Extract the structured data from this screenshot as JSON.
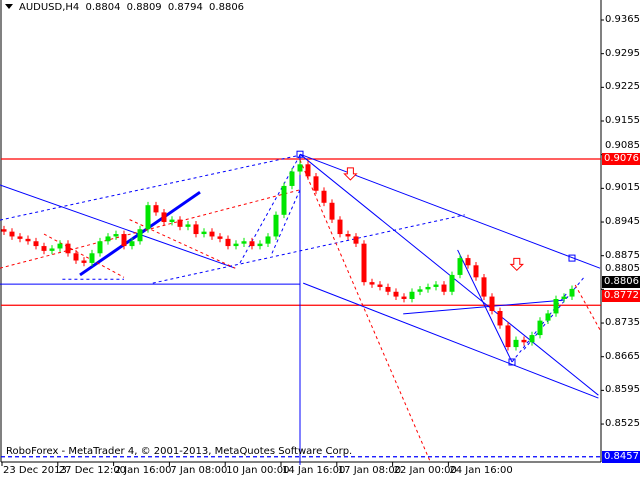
{
  "header": {
    "symbol": "AUDUSD,H4",
    "open": "0.8804",
    "high": "0.8809",
    "low": "0.8794",
    "close": "0.8806"
  },
  "copyright": "RoboForex - MetaTrader 4, © 2001-2013, MetaQuotes Software Corp.",
  "colors": {
    "bull": "#00e600",
    "bear": "#ff0000",
    "lines": "#0000ff",
    "levels": "#ff0000",
    "current_price_bg": "#000000",
    "level_tag_bg": "#ff0000",
    "low_tag_bg": "#0000ff"
  },
  "chart_data": {
    "type": "candlestick",
    "ylim": [
      0.8435,
      0.94
    ],
    "y_ticks": [
      "0.9365",
      "0.9295",
      "0.9225",
      "0.9155",
      "0.9085",
      "0.9015",
      "0.8945",
      "0.8875",
      "0.8805",
      "0.8735",
      "0.8665",
      "0.8595",
      "0.8525"
    ],
    "x_ticks": [
      "23 Dec 2013",
      "27 Dec 12:00",
      "2 Jan 16:00",
      "7 Jan 08:00",
      "10 Jan 00:00",
      "14 Jan 16:00",
      "17 Jan 08:00",
      "22 Jan 00:00",
      "24 Jan 16:00"
    ],
    "close": [
      0.8925,
      0.8915,
      0.891,
      0.8905,
      0.8895,
      0.8885,
      0.889,
      0.89,
      0.888,
      0.8865,
      0.886,
      0.888,
      0.8905,
      0.8915,
      0.892,
      0.8895,
      0.8905,
      0.893,
      0.898,
      0.8965,
      0.8945,
      0.895,
      0.8935,
      0.894,
      0.892,
      0.8925,
      0.8915,
      0.891,
      0.8895,
      0.89,
      0.8905,
      0.8895,
      0.89,
      0.8915,
      0.896,
      0.902,
      0.905,
      0.9065,
      0.904,
      0.901,
      0.8985,
      0.895,
      0.892,
      0.8915,
      0.89,
      0.882,
      0.8815,
      0.881,
      0.88,
      0.879,
      0.8785,
      0.88,
      0.8805,
      0.881,
      0.8815,
      0.88,
      0.8835,
      0.887,
      0.8855,
      0.883,
      0.879,
      0.876,
      0.873,
      0.8685,
      0.87,
      0.8695,
      0.871,
      0.874,
      0.8755,
      0.8785,
      0.879,
      0.8806
    ],
    "price_labels": {
      "current": "0.8806",
      "resistance": "0.9076",
      "support": "0.8772",
      "target": "0.8457"
    },
    "levels": [
      {
        "price": 0.9076,
        "style": "solid",
        "color": "red"
      },
      {
        "price": 0.8772,
        "style": "solid",
        "color": "red"
      },
      {
        "price": 0.8457,
        "style": "dashed",
        "color": "blue"
      }
    ],
    "trendlines": [
      {
        "from": [
          -0.5,
          0.9022
        ],
        "to": [
          28.9,
          0.8849
        ],
        "style": "solid",
        "color": "blue"
      },
      {
        "from": [
          37,
          0.9086
        ],
        "to": [
          74.5,
          0.8849
        ],
        "style": "solid",
        "color": "blue"
      },
      {
        "from": [
          37,
          0.9086
        ],
        "to": [
          74.3,
          0.8585
        ],
        "style": "solid",
        "color": "blue"
      },
      {
        "from": [
          37.4,
          0.8818
        ],
        "to": [
          74.3,
          0.8579
        ],
        "style": "solid",
        "color": "blue"
      },
      {
        "from": [
          9.5,
          0.8835
        ],
        "to": [
          24.5,
          0.9007
        ],
        "style": "bold",
        "color": "blue"
      },
      {
        "from": [
          -0.5,
          0.8816
        ],
        "to": [
          37,
          0.8816
        ],
        "style": "solid",
        "color": "blue"
      },
      {
        "from": [
          37,
          0.9086
        ],
        "to": [
          37,
          0.844
        ],
        "style": "solid",
        "color": "blue"
      },
      {
        "from": [
          49.9,
          0.8754
        ],
        "to": [
          70.1,
          0.8783
        ],
        "style": "solid",
        "color": "blue"
      },
      {
        "from": [
          56.7,
          0.8887
        ],
        "to": [
          63.5,
          0.8654
        ],
        "style": "solid",
        "color": "blue"
      },
      {
        "from": [
          -0.5,
          0.8949
        ],
        "to": [
          37,
          0.9084
        ],
        "style": "dashed",
        "color": "blue"
      },
      {
        "from": [
          7.3,
          0.8826
        ],
        "to": [
          15,
          0.8826
        ],
        "style": "dashed",
        "color": "blue"
      },
      {
        "from": [
          18.6,
          0.8818
        ],
        "to": [
          57.6,
          0.896
        ],
        "style": "dashed",
        "color": "blue"
      },
      {
        "from": [
          29.5,
          0.886
        ],
        "to": [
          37,
          0.9084
        ],
        "style": "dashed",
        "color": "blue"
      },
      {
        "from": [
          33.5,
          0.888
        ],
        "to": [
          37,
          0.9012
        ],
        "style": "dashed",
        "color": "blue"
      },
      {
        "from": [
          63.5,
          0.8654
        ],
        "to": [
          70.5,
          0.88
        ],
        "style": "dashed",
        "color": "blue"
      },
      {
        "from": [
          65,
          0.868
        ],
        "to": [
          72.5,
          0.883
        ],
        "style": "dashed",
        "color": "blue"
      },
      {
        "from": [
          -0.5,
          0.8849
        ],
        "to": [
          37,
          0.9012
        ],
        "style": "dashed",
        "color": "red"
      },
      {
        "from": [
          37,
          0.9074
        ],
        "to": [
          53.3,
          0.8446
        ],
        "style": "dashed",
        "color": "red"
      },
      {
        "from": [
          71.4,
          0.8814
        ],
        "to": [
          74.5,
          0.8721
        ],
        "style": "dashed",
        "color": "red"
      },
      {
        "from": [
          5,
          0.892
        ],
        "to": [
          15,
          0.883
        ],
        "style": "dashed",
        "color": "red"
      },
      {
        "from": [
          15.7,
          0.895
        ],
        "to": [
          28.9,
          0.8849
        ],
        "style": "dashed",
        "color": "red"
      }
    ],
    "markers": [
      {
        "type": "square",
        "at": [
          37,
          0.9086
        ]
      },
      {
        "type": "square",
        "at": [
          63.5,
          0.8654
        ]
      },
      {
        "type": "square",
        "at": [
          71,
          0.887
        ]
      },
      {
        "type": "down-arrow",
        "at": [
          43.3,
          0.9045
        ]
      },
      {
        "type": "down-arrow",
        "at": [
          64.1,
          0.8857
        ]
      }
    ]
  }
}
